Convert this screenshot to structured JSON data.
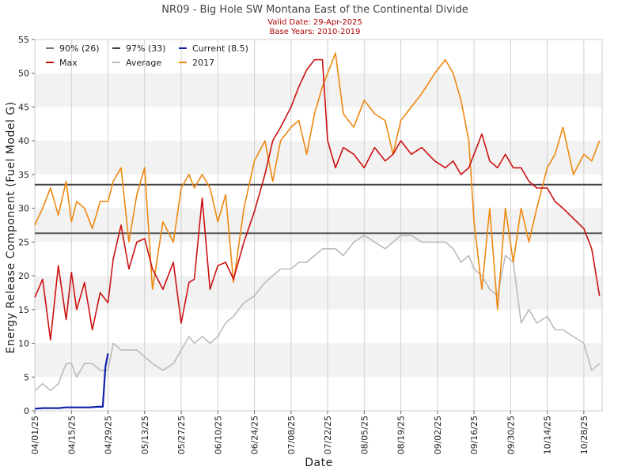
{
  "chart_data": {
    "type": "line",
    "title": "NR09 - Big Hole SW Montana East of the Continental Divide",
    "subtitle_valid": "Valid Date: 29-Apr-2025",
    "subtitle_base": "Base Years: 2010-2019",
    "xlabel": "Date",
    "ylabel": "Energy Release Component (Fuel Model G)",
    "ylim": [
      0,
      55
    ],
    "yticks": [
      0,
      5,
      10,
      15,
      20,
      25,
      30,
      35,
      40,
      45,
      50,
      55
    ],
    "xlim": [
      "2025-04-01",
      "2025-11-04"
    ],
    "xticks": [
      "04/01/25",
      "04/15/25",
      "04/29/25",
      "05/13/25",
      "05/27/25",
      "06/10/25",
      "06/24/25",
      "07/08/25",
      "07/22/25",
      "08/05/25",
      "08/19/25",
      "09/02/25",
      "09/16/25",
      "09/30/25",
      "10/14/25",
      "10/28/25"
    ],
    "grid": true,
    "legend_position": "top-left",
    "thresholds": [
      {
        "name": "90% (26)",
        "value": 26.3,
        "color": "#555555"
      },
      {
        "name": "97% (33)",
        "value": 33.5,
        "color": "#444444"
      }
    ],
    "series": [
      {
        "name": "Max",
        "color": "#cc1111",
        "x": [
          "04/01",
          "04/04",
          "04/07",
          "04/10",
          "04/13",
          "04/15",
          "04/17",
          "04/20",
          "04/23",
          "04/26",
          "04/29",
          "05/01",
          "05/04",
          "05/07",
          "05/10",
          "05/13",
          "05/16",
          "05/20",
          "05/24",
          "05/27",
          "05/30",
          "06/01",
          "06/04",
          "06/07",
          "06/10",
          "06/13",
          "06/16",
          "06/20",
          "06/24",
          "06/28",
          "07/01",
          "07/04",
          "07/08",
          "07/11",
          "07/14",
          "07/17",
          "07/20",
          "07/22",
          "07/25",
          "07/28",
          "08/01",
          "08/05",
          "08/09",
          "08/13",
          "08/16",
          "08/19",
          "08/23",
          "08/27",
          "09/01",
          "09/05",
          "09/08",
          "09/11",
          "09/14",
          "09/16",
          "09/19",
          "09/22",
          "09/25",
          "09/28",
          "10/01",
          "10/04",
          "10/07",
          "10/10",
          "10/14",
          "10/17",
          "10/20",
          "10/24",
          "10/28",
          "10/31",
          "11/03"
        ],
        "values": [
          16.8,
          19.5,
          10.5,
          21.5,
          13.5,
          20.5,
          15,
          19,
          12,
          17.5,
          16,
          22.5,
          27.5,
          21,
          25,
          25.5,
          21,
          18,
          22,
          13,
          19,
          19.5,
          31.5,
          18,
          21.5,
          22,
          19.5,
          25,
          29.5,
          35,
          40,
          42,
          45,
          48,
          50.5,
          52,
          52,
          40,
          36,
          39,
          38,
          36,
          39,
          37,
          38,
          40,
          38,
          39,
          37,
          36,
          37,
          35,
          36,
          38,
          41,
          37,
          36,
          38,
          36,
          36,
          34,
          33,
          33,
          31,
          30,
          28.5,
          27,
          24,
          17
        ]
      },
      {
        "name": "2017",
        "color": "#ee8811",
        "x": [
          "04/01",
          "04/04",
          "04/07",
          "04/10",
          "04/13",
          "04/15",
          "04/17",
          "04/20",
          "04/23",
          "04/26",
          "04/29",
          "05/01",
          "05/04",
          "05/07",
          "05/10",
          "05/13",
          "05/16",
          "05/20",
          "05/24",
          "05/27",
          "05/30",
          "06/01",
          "06/04",
          "06/07",
          "06/10",
          "06/13",
          "06/16",
          "06/20",
          "06/24",
          "06/28",
          "07/01",
          "07/04",
          "07/08",
          "07/11",
          "07/14",
          "07/17",
          "07/20",
          "07/22",
          "07/25",
          "07/28",
          "08/01",
          "08/05",
          "08/09",
          "08/13",
          "08/16",
          "08/19",
          "08/23",
          "08/27",
          "09/01",
          "09/05",
          "09/08",
          "09/11",
          "09/14",
          "09/16",
          "09/19",
          "09/22",
          "09/25",
          "09/28",
          "10/01",
          "10/04",
          "10/07",
          "10/10",
          "10/14",
          "10/17",
          "10/20",
          "10/24",
          "10/28",
          "10/31",
          "11/03"
        ],
        "values": [
          27.5,
          30,
          33,
          29,
          34,
          28,
          31,
          30,
          27,
          31,
          31,
          34,
          36,
          25,
          32,
          36,
          18,
          28,
          25,
          33,
          35,
          33,
          35,
          33,
          28,
          32,
          19,
          30,
          37,
          40,
          34,
          40,
          42,
          43,
          38,
          44,
          48,
          50,
          53,
          44,
          42,
          46,
          44,
          43,
          38,
          43,
          45,
          47,
          50,
          52,
          50,
          46,
          40,
          28,
          18,
          30,
          15,
          30,
          22,
          30,
          25,
          30,
          36,
          38,
          42,
          35,
          38,
          37,
          40
        ]
      },
      {
        "name": "Average",
        "color": "#bbbbbb",
        "x": [
          "04/01",
          "04/04",
          "04/07",
          "04/10",
          "04/13",
          "04/15",
          "04/17",
          "04/20",
          "04/23",
          "04/26",
          "04/29",
          "05/01",
          "05/04",
          "05/07",
          "05/10",
          "05/13",
          "05/16",
          "05/20",
          "05/24",
          "05/27",
          "05/30",
          "06/01",
          "06/04",
          "06/07",
          "06/10",
          "06/13",
          "06/16",
          "06/20",
          "06/24",
          "06/28",
          "07/01",
          "07/04",
          "07/08",
          "07/11",
          "07/14",
          "07/17",
          "07/20",
          "07/22",
          "07/25",
          "07/28",
          "08/01",
          "08/05",
          "08/09",
          "08/13",
          "08/16",
          "08/19",
          "08/23",
          "08/27",
          "09/01",
          "09/05",
          "09/08",
          "09/11",
          "09/14",
          "09/16",
          "09/19",
          "09/22",
          "09/25",
          "09/28",
          "10/01",
          "10/04",
          "10/07",
          "10/10",
          "10/14",
          "10/17",
          "10/20",
          "10/24",
          "10/28",
          "10/31",
          "11/03"
        ],
        "values": [
          3,
          4,
          3,
          4,
          7,
          7,
          5,
          7,
          7,
          6,
          6,
          10,
          9,
          9,
          9,
          8,
          7,
          6,
          7,
          9,
          11,
          10,
          11,
          10,
          11,
          13,
          14,
          16,
          17,
          19,
          20,
          21,
          21,
          22,
          22,
          23,
          24,
          24,
          24,
          23,
          25,
          26,
          25,
          24,
          25,
          26,
          26,
          25,
          25,
          25,
          24,
          22,
          23,
          21,
          20,
          18,
          17,
          23,
          22,
          13,
          15,
          13,
          14,
          12,
          12,
          11,
          10,
          6,
          7
        ]
      },
      {
        "name": "Current (8.5)",
        "color": "#1122aa",
        "x": [
          "04/01",
          "04/04",
          "04/07",
          "04/10",
          "04/13",
          "04/16",
          "04/19",
          "04/22",
          "04/25",
          "04/27",
          "04/28",
          "04/29"
        ],
        "values": [
          0.3,
          0.4,
          0.4,
          0.4,
          0.5,
          0.5,
          0.5,
          0.5,
          0.6,
          0.6,
          6.5,
          8.5
        ]
      }
    ],
    "legend": [
      {
        "label": "90% (26)",
        "color": "#777777"
      },
      {
        "label": "97% (33)",
        "color": "#444444"
      },
      {
        "label": "Current (8.5)",
        "color": "#1122aa"
      },
      {
        "label": "Max",
        "color": "#cc1111"
      },
      {
        "label": "Average",
        "color": "#bbbbbb"
      },
      {
        "label": "2017",
        "color": "#ee8811"
      }
    ]
  }
}
